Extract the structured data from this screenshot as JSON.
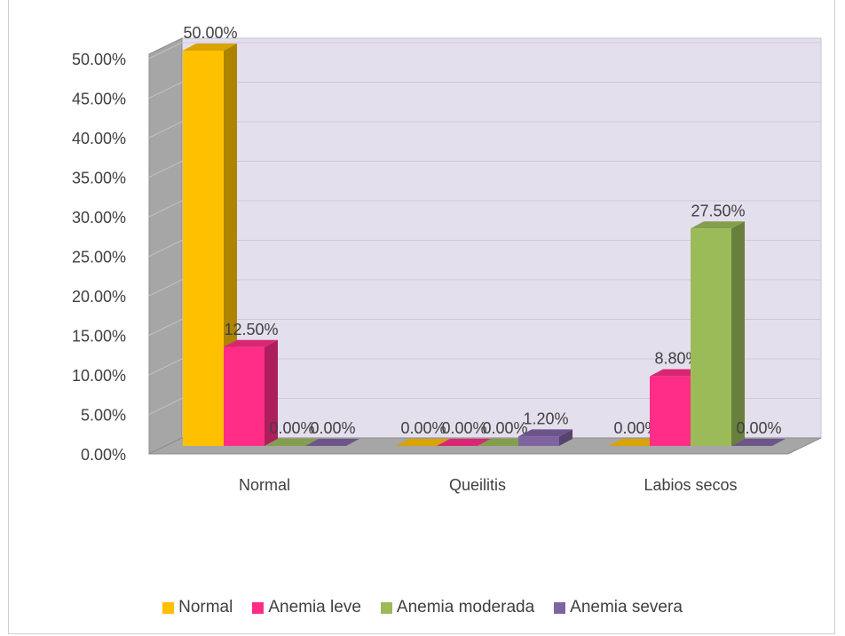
{
  "chart_data": {
    "type": "bar",
    "title": "",
    "categories": [
      "Normal",
      "Queilitis",
      "Labios secos"
    ],
    "series": [
      {
        "name": "Normal",
        "values": [
          50.0,
          0.0,
          0.0
        ],
        "labels": [
          "50.00%",
          "0.00%",
          "0.00%"
        ],
        "color": "#FFC000"
      },
      {
        "name": "Anemia leve",
        "values": [
          12.5,
          0.0,
          8.8
        ],
        "labels": [
          "12.50%",
          "0.00%",
          "8.80%"
        ],
        "color": "#FF2D87"
      },
      {
        "name": "Anemia moderada",
        "values": [
          0.0,
          0.0,
          27.5
        ],
        "labels": [
          "0.00%",
          "0.00%",
          "27.50%"
        ],
        "color": "#9BBB59"
      },
      {
        "name": "Anemia severa",
        "values": [
          0.0,
          1.2,
          0.0
        ],
        "labels": [
          "0.00%",
          "1.20%",
          "0.00%"
        ],
        "color": "#8064A2"
      }
    ],
    "ylim": [
      0,
      50
    ],
    "yticks": [
      "0.00%",
      "5.00%",
      "10.00%",
      "15.00%",
      "20.00%",
      "25.00%",
      "30.00%",
      "35.00%",
      "40.00%",
      "45.00%",
      "50.00%"
    ],
    "three_d": true,
    "grid": true,
    "legend_position": "bottom"
  }
}
